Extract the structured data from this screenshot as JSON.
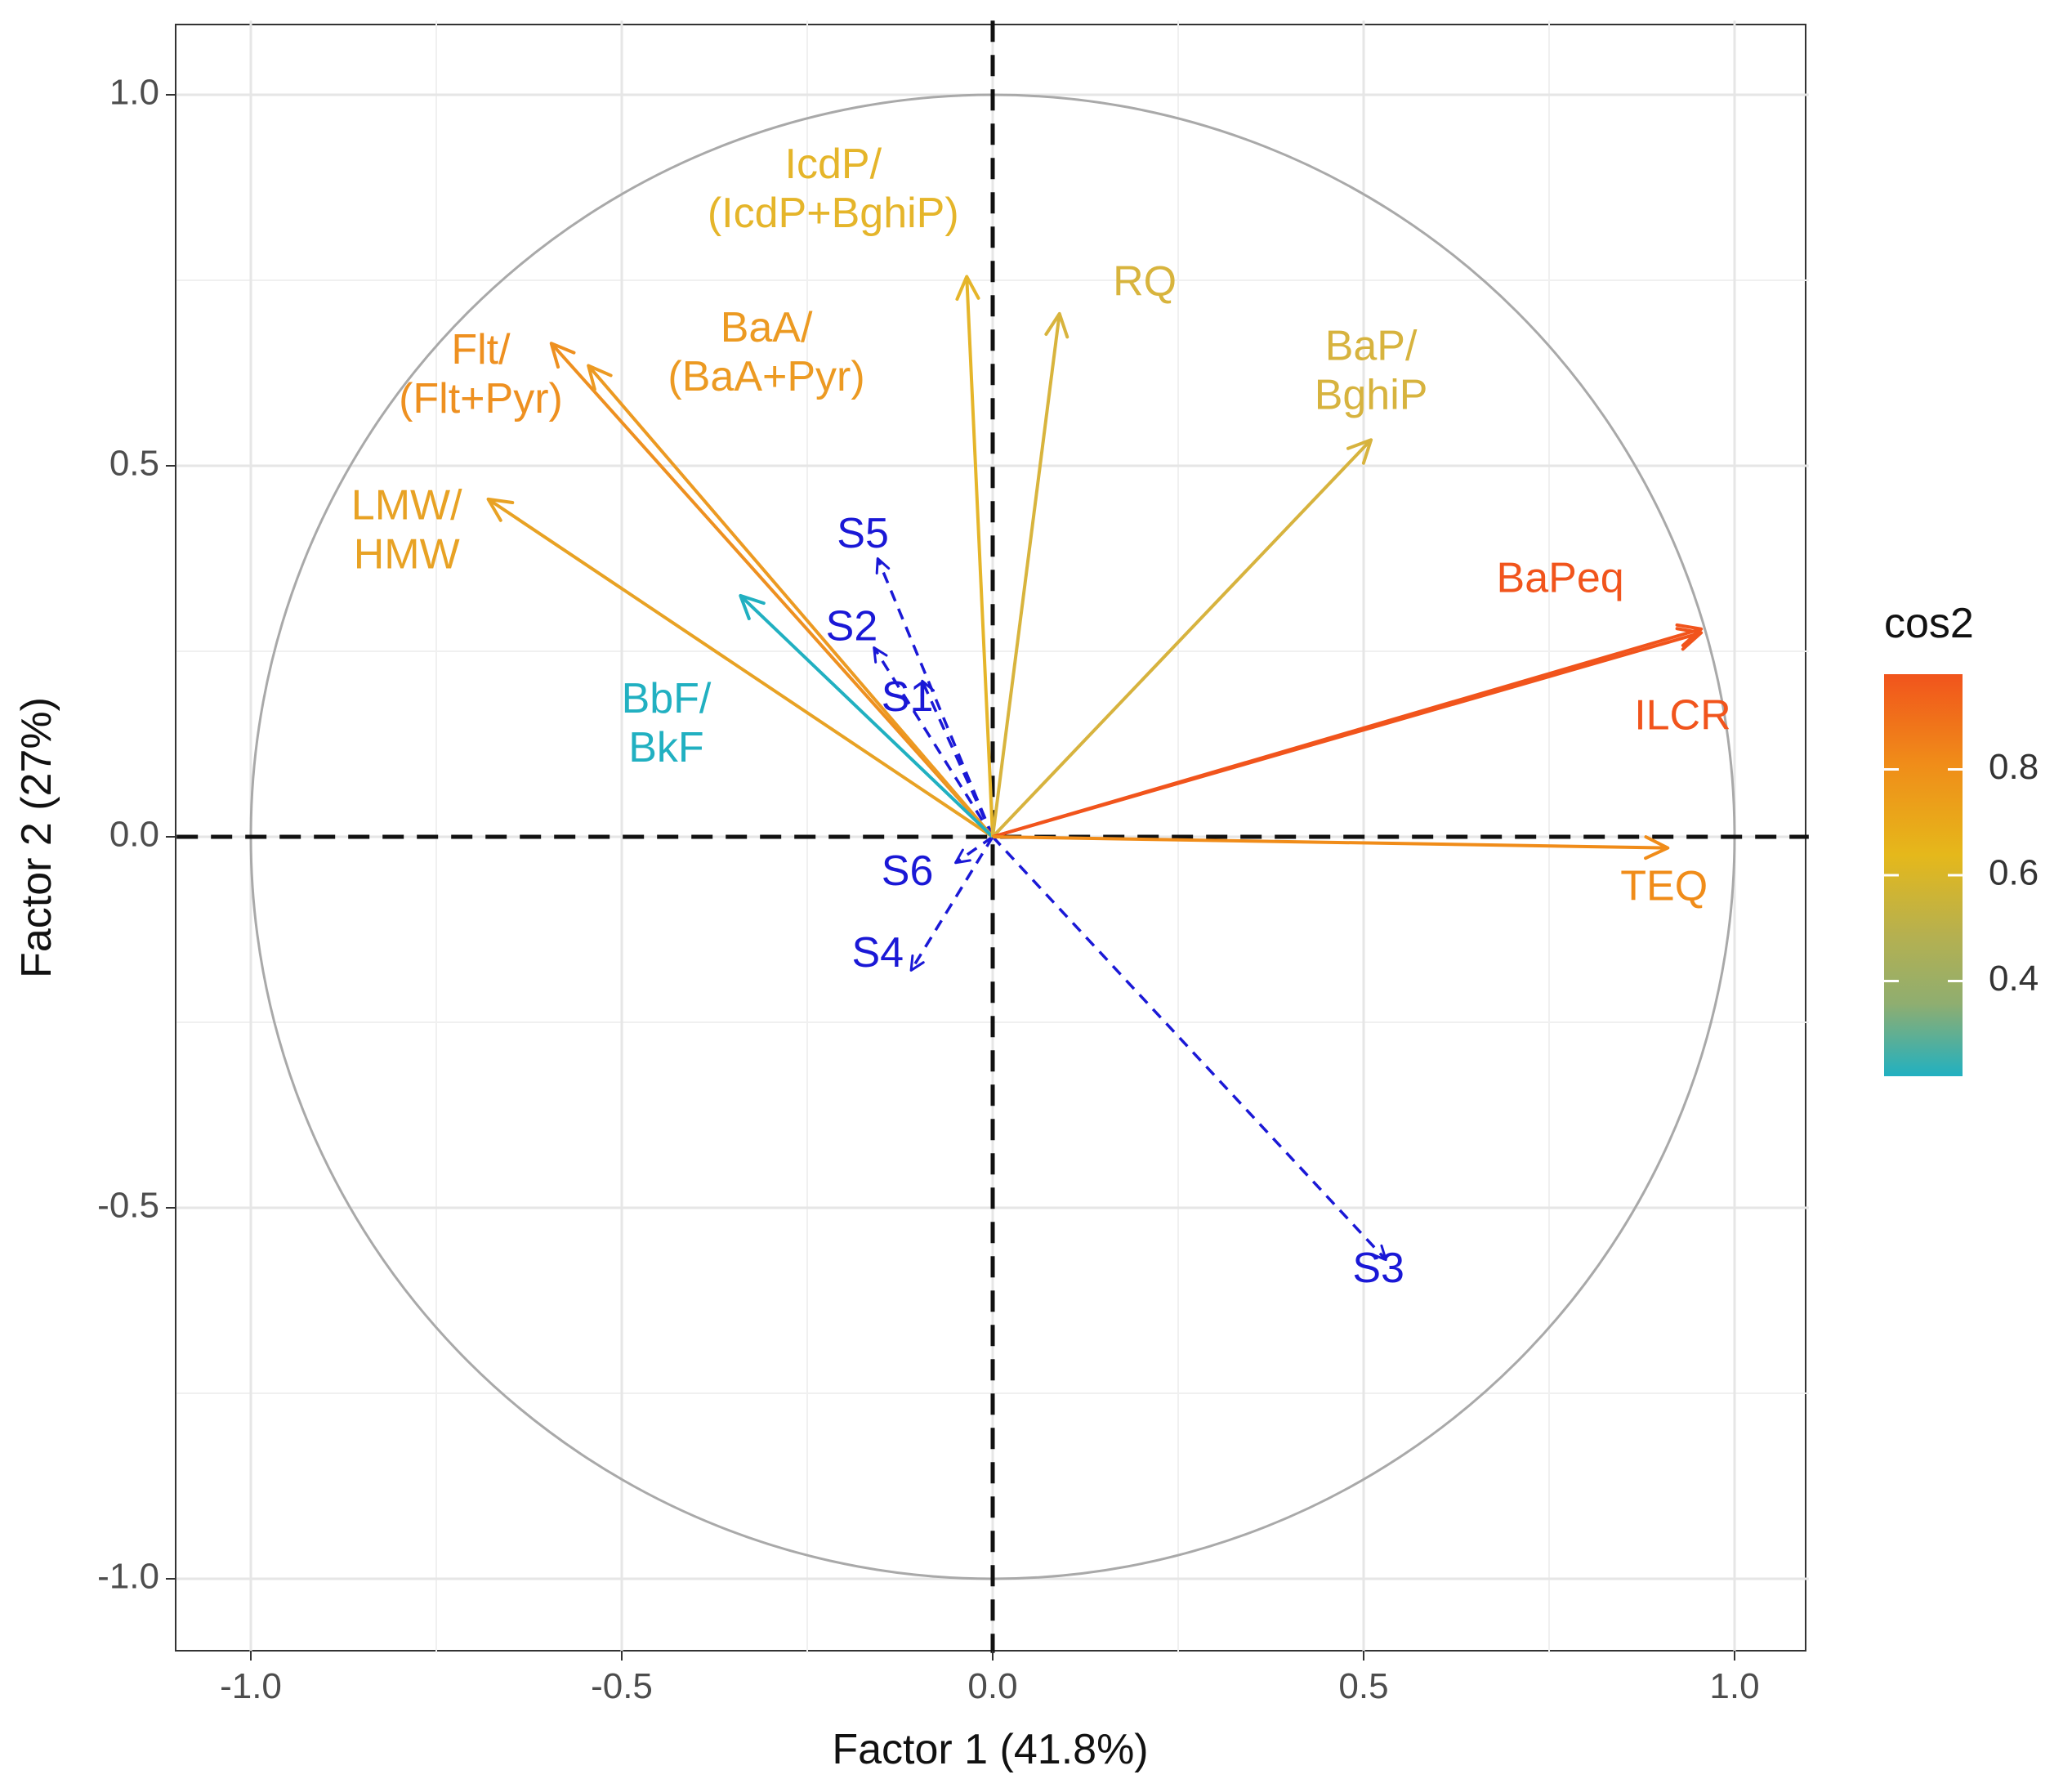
{
  "chart_data": {
    "type": "pca-biplot",
    "xlabel": "Factor 1 (41.8%)",
    "ylabel": "Factor 2 (27%)",
    "xlim": [
      -1.1,
      1.1
    ],
    "ylim": [
      -1.1,
      1.1
    ],
    "xticks": [
      {
        "v": -1.0,
        "label": "-1.0"
      },
      {
        "v": -0.5,
        "label": "-0.5"
      },
      {
        "v": 0.0,
        "label": "0.0"
      },
      {
        "v": 0.5,
        "label": "0.5"
      },
      {
        "v": 1.0,
        "label": "1.0"
      }
    ],
    "yticks": [
      {
        "v": -1.0,
        "label": "-1.0"
      },
      {
        "v": -0.5,
        "label": "-0.5"
      },
      {
        "v": 0.0,
        "label": "0.0"
      },
      {
        "v": 0.5,
        "label": "0.5"
      },
      {
        "v": 1.0,
        "label": "1.0"
      }
    ],
    "grid": true,
    "unit_circle": true,
    "legend": {
      "title": "cos2",
      "ticks": [
        "0.8",
        "0.6",
        "0.4"
      ],
      "tick_values": [
        0.8,
        0.6,
        0.4
      ],
      "range": [
        0.22,
        0.98
      ],
      "placement": "right",
      "gradient": [
        "#f1541c",
        "#f08c19",
        "#e5b81b",
        "#b5b050",
        "#8fae70",
        "#21b0c1"
      ]
    },
    "variables": [
      {
        "name": "LMW/HMW",
        "lines": [
          "LMW/",
          "HMW"
        ],
        "x": -0.68,
        "y": 0.455,
        "cos2": 0.67,
        "color": "#e8a224",
        "label_x": -0.79,
        "label_y": 0.41
      },
      {
        "name": "Flt/(Flt+Pyr)",
        "lines": [
          "Flt/",
          "(Flt+Pyr)"
        ],
        "x": -0.595,
        "y": 0.665,
        "cos2": 0.78,
        "color": "#ee9020",
        "label_x": -0.69,
        "label_y": 0.62
      },
      {
        "name": "BaA/(BaA+Pyr)",
        "lines": [
          "BaA/",
          "(BaA+Pyr)"
        ],
        "x": -0.545,
        "y": 0.635,
        "cos2": 0.7,
        "color": "#ec9a22",
        "label_x": -0.305,
        "label_y": 0.65
      },
      {
        "name": "BbF/BkF",
        "lines": [
          "BbF/",
          "BkF"
        ],
        "x": -0.34,
        "y": 0.325,
        "cos2": 0.23,
        "color": "#21b0c1",
        "label_x": -0.44,
        "label_y": 0.15
      },
      {
        "name": "IcdP/(IcdP+BghiP)",
        "lines": [
          "IcdP/",
          "(IcdP+BghiP)"
        ],
        "x": -0.035,
        "y": 0.755,
        "cos2": 0.57,
        "color": "#e5b52a",
        "label_x": -0.215,
        "label_y": 0.87
      },
      {
        "name": "RQ",
        "lines": [
          "RQ"
        ],
        "x": 0.09,
        "y": 0.705,
        "cos2": 0.52,
        "color": "#d8b43d",
        "label_x": 0.205,
        "label_y": 0.745
      },
      {
        "name": "BaP/BghiP",
        "lines": [
          "BaP/",
          "BghiP"
        ],
        "x": 0.51,
        "y": 0.535,
        "cos2": 0.54,
        "color": "#d7b33e",
        "label_x": 0.51,
        "label_y": 0.625
      },
      {
        "name": "BaPeq",
        "lines": [
          "BaPeq"
        ],
        "x": 0.955,
        "y": 0.28,
        "cos2": 0.98,
        "color": "#f1541c",
        "label_x": 0.765,
        "label_y": 0.345
      },
      {
        "name": "ILCR",
        "lines": [
          "ILCR"
        ],
        "x": 0.955,
        "y": 0.275,
        "cos2": 0.98,
        "color": "#f1541c",
        "label_x": 0.93,
        "label_y": 0.16
      },
      {
        "name": "TEQ",
        "lines": [
          "TEQ"
        ],
        "x": 0.91,
        "y": -0.015,
        "cos2": 0.83,
        "color": "#f08c19",
        "label_x": 0.905,
        "label_y": -0.07
      }
    ],
    "individuals_color": "#1a18d6",
    "individuals": [
      {
        "name": "S5",
        "x": -0.155,
        "y": 0.375,
        "label_x": -0.175,
        "label_y": 0.405
      },
      {
        "name": "S2",
        "x": -0.16,
        "y": 0.255,
        "label_x": -0.19,
        "label_y": 0.28
      },
      {
        "name": "S1",
        "x": -0.095,
        "y": 0.21,
        "label_x": -0.115,
        "label_y": 0.185
      },
      {
        "name": "S6",
        "x": -0.05,
        "y": -0.035,
        "label_x": -0.115,
        "label_y": -0.05
      },
      {
        "name": "S4",
        "x": -0.11,
        "y": -0.18,
        "label_x": -0.155,
        "label_y": -0.16
      },
      {
        "name": "S3",
        "x": 0.53,
        "y": -0.57,
        "label_x": 0.52,
        "label_y": -0.585
      }
    ]
  }
}
